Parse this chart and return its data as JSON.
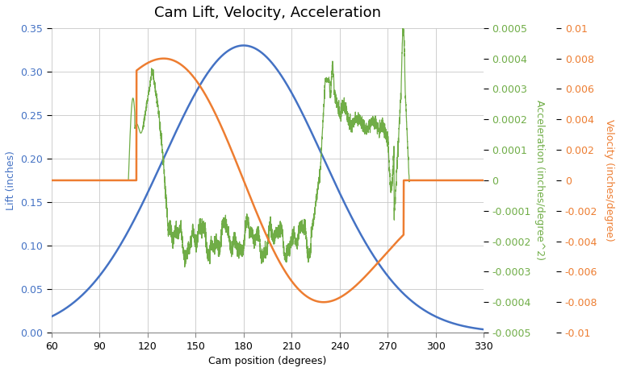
{
  "title": "Cam Lift, Velocity, Acceleration",
  "xlabel": "Cam position (degrees)",
  "ylabel_left": "Lift (inches)",
  "ylabel_middle": "Acceleration (inches/degree^2)",
  "ylabel_right": "Velocity (inches/degree)",
  "xlim": [
    60,
    330
  ],
  "xticks": [
    60,
    90,
    120,
    150,
    180,
    210,
    240,
    270,
    300,
    330
  ],
  "ylim_lift": [
    0,
    0.35
  ],
  "yticks_lift": [
    0,
    0.05,
    0.1,
    0.15,
    0.2,
    0.25,
    0.3,
    0.35
  ],
  "ylim_accel": [
    -0.0005,
    0.0005
  ],
  "yticks_accel": [
    -0.0005,
    -0.0004,
    -0.0003,
    -0.0002,
    -0.0001,
    0,
    0.0001,
    0.0002,
    0.0003,
    0.0004,
    0.0005
  ],
  "ylim_vel": [
    -0.01,
    0.01
  ],
  "yticks_vel": [
    -0.01,
    -0.008,
    -0.006,
    -0.004,
    -0.002,
    0,
    0.002,
    0.004,
    0.006,
    0.008,
    0.01
  ],
  "color_lift": "#4472C4",
  "color_accel": "#70AD47",
  "color_vel": "#ED7D31",
  "background_color": "#FFFFFF",
  "title_fontsize": 13,
  "label_fontsize": 9,
  "tick_fontsize": 9
}
